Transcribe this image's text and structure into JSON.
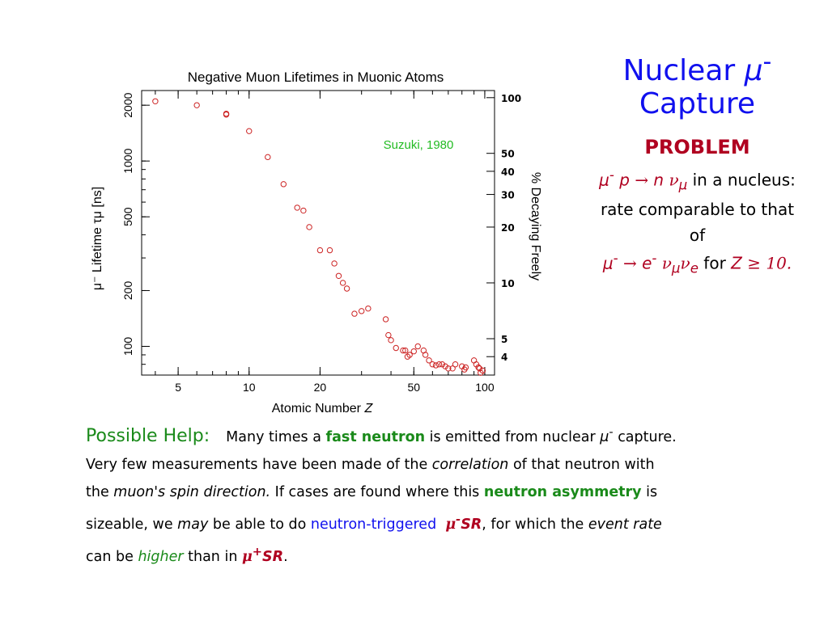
{
  "chart_data": {
    "type": "scatter",
    "title": "Negative Muon Lifetimes in Muonic Atoms",
    "xlabel": "Atomic Number",
    "xlabel_var": "Z",
    "ylabel": "μ⁻  Lifetime  τμ [ns]",
    "y2label": "% Decaying Freely",
    "annotation": "Suzuki, 1980",
    "xscale": "log",
    "yscale": "log",
    "xlim": [
      3.5,
      110
    ],
    "ylim": [
      70,
      2400
    ],
    "x_ticks": [
      5,
      10,
      20,
      50,
      100
    ],
    "y_ticks": [
      100,
      200,
      500,
      1000,
      2000
    ],
    "y2_ticks": [
      {
        "label": "100",
        "y": 2197
      },
      {
        "label": "50",
        "y": 1100
      },
      {
        "label": "40",
        "y": 880
      },
      {
        "label": "30",
        "y": 660
      },
      {
        "label": "20",
        "y": 440
      },
      {
        "label": "10",
        "y": 220
      },
      {
        "label": "5",
        "y": 110
      },
      {
        "label": "4",
        "y": 88
      }
    ],
    "marker_color": "#cc2222",
    "points": [
      {
        "x": 4,
        "y": 2100
      },
      {
        "x": 6,
        "y": 2000
      },
      {
        "x": 8,
        "y": 1800
      },
      {
        "x": 8,
        "y": 1780
      },
      {
        "x": 10,
        "y": 1450
      },
      {
        "x": 12,
        "y": 1050
      },
      {
        "x": 14,
        "y": 750
      },
      {
        "x": 16,
        "y": 560
      },
      {
        "x": 17,
        "y": 540
      },
      {
        "x": 18,
        "y": 440
      },
      {
        "x": 20,
        "y": 330
      },
      {
        "x": 22,
        "y": 330
      },
      {
        "x": 23,
        "y": 280
      },
      {
        "x": 24,
        "y": 240
      },
      {
        "x": 25,
        "y": 220
      },
      {
        "x": 26,
        "y": 205
      },
      {
        "x": 28,
        "y": 150
      },
      {
        "x": 30,
        "y": 155
      },
      {
        "x": 32,
        "y": 160
      },
      {
        "x": 38,
        "y": 140
      },
      {
        "x": 39,
        "y": 115
      },
      {
        "x": 40,
        "y": 108
      },
      {
        "x": 42,
        "y": 98
      },
      {
        "x": 45,
        "y": 95
      },
      {
        "x": 46,
        "y": 95
      },
      {
        "x": 47,
        "y": 88
      },
      {
        "x": 48,
        "y": 90
      },
      {
        "x": 50,
        "y": 94
      },
      {
        "x": 52,
        "y": 100
      },
      {
        "x": 55,
        "y": 95
      },
      {
        "x": 56,
        "y": 90
      },
      {
        "x": 58,
        "y": 84
      },
      {
        "x": 60,
        "y": 80
      },
      {
        "x": 62,
        "y": 79
      },
      {
        "x": 64,
        "y": 80
      },
      {
        "x": 66,
        "y": 80
      },
      {
        "x": 68,
        "y": 78
      },
      {
        "x": 70,
        "y": 76
      },
      {
        "x": 73,
        "y": 76
      },
      {
        "x": 75,
        "y": 80
      },
      {
        "x": 80,
        "y": 78
      },
      {
        "x": 82,
        "y": 75
      },
      {
        "x": 83,
        "y": 77
      },
      {
        "x": 90,
        "y": 84
      },
      {
        "x": 92,
        "y": 80
      },
      {
        "x": 94,
        "y": 77
      },
      {
        "x": 95,
        "y": 76
      },
      {
        "x": 96,
        "y": 72
      },
      {
        "x": 98,
        "y": 74
      }
    ]
  },
  "slide": {
    "title_line1": "Nuclear ",
    "title_mu": "μ",
    "title_sup": "-",
    "title_line2": "Capture",
    "problem_label": "PROBLEM",
    "eq1": {
      "mu": "μ",
      "mu_sup": "-",
      "p": " p ",
      "arrow": "→",
      "n": " n ",
      "nu": "ν",
      "nu_sub": "μ",
      "rest": "in a nucleus:"
    },
    "line2": "rate comparable to that",
    "line3": "of",
    "eq2": {
      "mu": "μ",
      "mu_sup": "-",
      "arrow": "→",
      "e": "e",
      "e_sup": "-",
      "nu1": "ν",
      "nu1_sub": "μ",
      "nu2": "ν",
      "nu2_sub": "e",
      "for": " for ",
      "z": "Z",
      "geq": " ≥ 10."
    }
  },
  "help": {
    "heading": "Possible Help:",
    "t1": "Many times a ",
    "fast_neutron": "fast neutron",
    "t2": " is emitted from nuclear ",
    "mu": "μ",
    "mu_sup": "-",
    "t3": " capture.",
    "t4": "Very few measurements have been made of the ",
    "correlation": "correlation",
    "t5": " of that neutron with",
    "t6": "the ",
    "spin_dir": "muon's spin direction.",
    "t7": "   If cases are found where this ",
    "neutron_asym": "neutron asymmetry",
    "t8": " is",
    "t9": "sizeable, we ",
    "may": "may",
    "t10": " be able to do ",
    "triggered": "neutron-triggered",
    "musr_minus_mu": "μ",
    "musr_minus_sup": "-",
    "musr_minus_sr": "SR",
    "t11": ", for which the ",
    "event_rate": "event rate",
    "t12": "can be ",
    "higher": "higher",
    "t13": " than in ",
    "musr_plus_mu": "μ",
    "musr_plus_sup": "+",
    "musr_plus_sr": "SR",
    "t14": "."
  }
}
